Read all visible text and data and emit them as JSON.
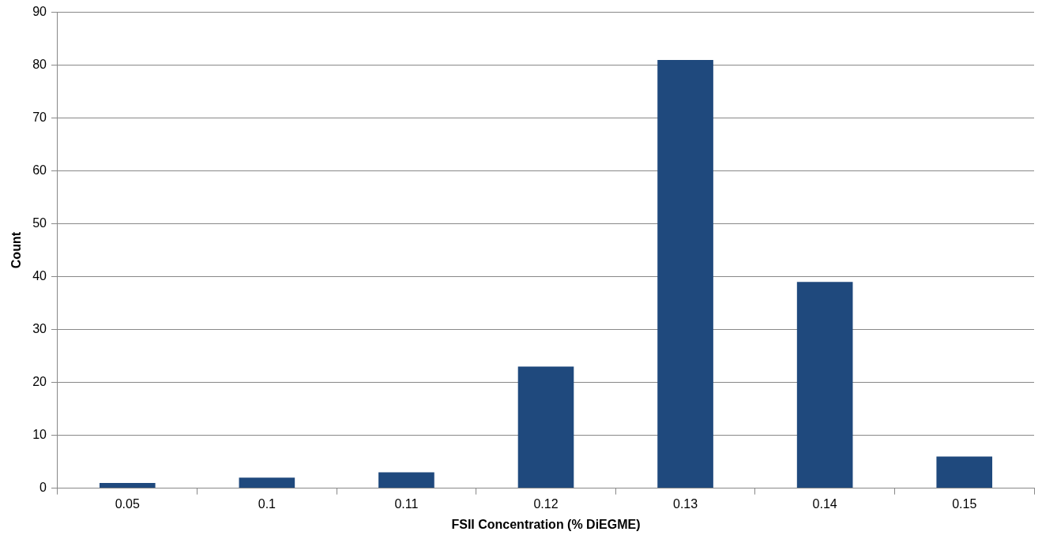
{
  "chart_data": {
    "type": "bar",
    "xlabel": "FSII Concentration (% DiEGME)",
    "ylabel": "Count",
    "categories": [
      "0.05",
      "0.1",
      "0.11",
      "0.12",
      "0.13",
      "0.14",
      "0.15"
    ],
    "values": [
      1,
      2,
      3,
      23,
      81,
      39,
      6
    ],
    "color": "#1f497d",
    "ylim": [
      0,
      90
    ],
    "yticks": [
      0,
      10,
      20,
      30,
      40,
      50,
      60,
      70,
      80,
      90
    ],
    "grid": "y",
    "legend": false
  }
}
